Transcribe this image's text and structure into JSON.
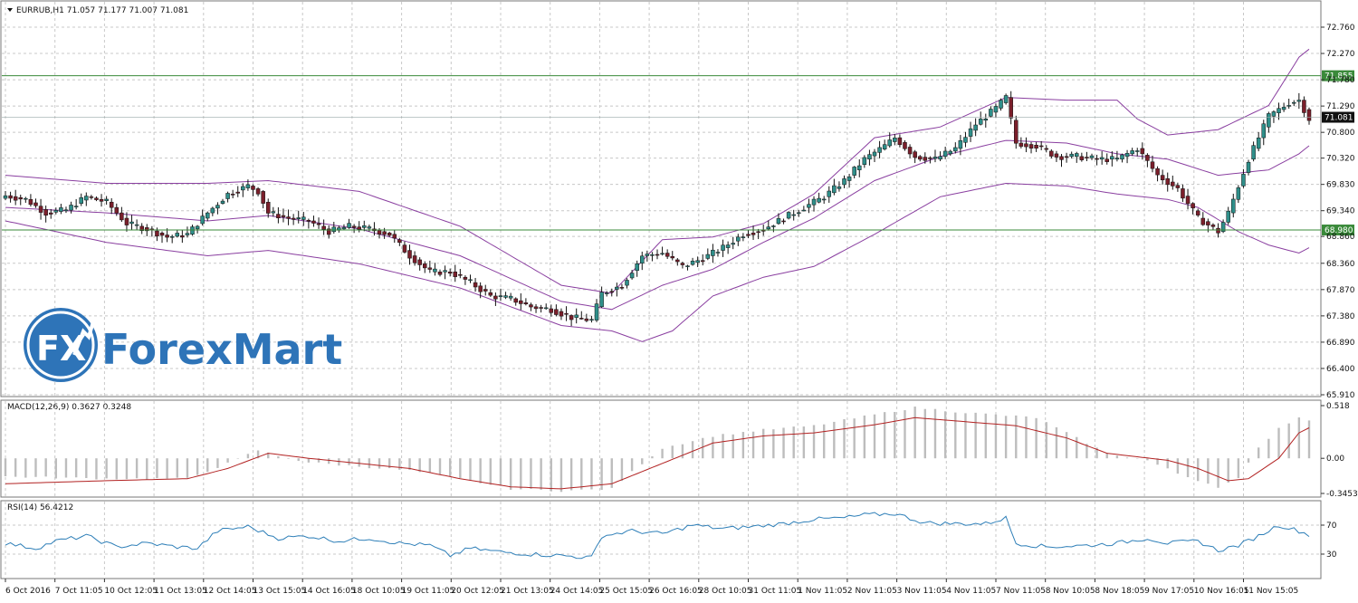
{
  "header": {
    "symbol_line": "EURRUB,H1  71.057 71.177 71.007 71.081"
  },
  "logo": {
    "text": "ForexMart",
    "icon_text": "FX"
  },
  "colors": {
    "bull": "#2f8f8a",
    "bear": "#7a1f2b",
    "band": "#8a3fa0",
    "hline": "#3a8a3a",
    "macd_hist": "#bdbdbd",
    "macd_signal": "#b22222",
    "rsi": "#2e7fb8",
    "grid": "#c8c8c8",
    "logo": "#2e74b8"
  },
  "chart_data": [
    {
      "type": "candlestick",
      "panel": "price",
      "ylim": [
        65.91,
        73.0
      ],
      "y_ticks": [
        "72.760",
        "72.270",
        "71.780",
        "71.290",
        "70.800",
        "70.320",
        "69.830",
        "69.340",
        "68.860",
        "68.360",
        "67.870",
        "67.380",
        "66.890",
        "66.400",
        "65.910"
      ],
      "horizontal_lines": [
        {
          "value": 71.855,
          "label": "71.855"
        },
        {
          "value": 68.98,
          "label": "68.980"
        }
      ],
      "current_price": {
        "value": 71.081,
        "label": "71.081"
      },
      "x_labels": [
        "6 Oct 2016",
        "7 Oct 11:05",
        "10 Oct 12:05",
        "11 Oct 13:05",
        "12 Oct 14:05",
        "13 Oct 15:05",
        "14 Oct 16:05",
        "18 Oct 10:05",
        "19 Oct 11:05",
        "20 Oct 12:05",
        "21 Oct 13:05",
        "24 Oct 14:05",
        "25 Oct 15:05",
        "26 Oct 16:05",
        "28 Oct 10:05",
        "31 Oct 11:05",
        "1 Nov 11:05",
        "2 Nov 11:05",
        "3 Nov 11:05",
        "4 Nov 11:05",
        "7 Nov 11:05",
        "8 Nov 10:05",
        "8 Nov 18:05",
        "9 Nov 17:05",
        "10 Nov 16:05",
        "11 Nov 15:05"
      ],
      "closes_anchor": [
        [
          0,
          69.62
        ],
        [
          4,
          69.55
        ],
        [
          8,
          69.3
        ],
        [
          12,
          69.35
        ],
        [
          16,
          69.6
        ],
        [
          20,
          69.5
        ],
        [
          24,
          69.1
        ],
        [
          28,
          69.0
        ],
        [
          32,
          68.85
        ],
        [
          36,
          68.9
        ],
        [
          40,
          69.3
        ],
        [
          44,
          69.65
        ],
        [
          48,
          69.8
        ],
        [
          50,
          69.7
        ],
        [
          52,
          69.3
        ],
        [
          56,
          69.2
        ],
        [
          60,
          69.15
        ],
        [
          64,
          68.95
        ],
        [
          68,
          69.05
        ],
        [
          72,
          69.0
        ],
        [
          76,
          68.9
        ],
        [
          80,
          68.5
        ],
        [
          84,
          68.2
        ],
        [
          88,
          68.2
        ],
        [
          92,
          68.0
        ],
        [
          96,
          67.75
        ],
        [
          100,
          67.7
        ],
        [
          104,
          67.55
        ],
        [
          108,
          67.5
        ],
        [
          112,
          67.35
        ],
        [
          116,
          67.3
        ],
        [
          118,
          67.8
        ],
        [
          122,
          67.95
        ],
        [
          126,
          68.5
        ],
        [
          130,
          68.55
        ],
        [
          134,
          68.3
        ],
        [
          138,
          68.45
        ],
        [
          142,
          68.65
        ],
        [
          146,
          68.9
        ],
        [
          150,
          69.0
        ],
        [
          154,
          69.2
        ],
        [
          158,
          69.4
        ],
        [
          162,
          69.6
        ],
        [
          166,
          69.9
        ],
        [
          170,
          70.3
        ],
        [
          174,
          70.55
        ],
        [
          176,
          70.7
        ],
        [
          180,
          70.35
        ],
        [
          184,
          70.3
        ],
        [
          188,
          70.5
        ],
        [
          192,
          70.95
        ],
        [
          196,
          71.25
        ],
        [
          198,
          71.45
        ],
        [
          200,
          70.6
        ],
        [
          204,
          70.55
        ],
        [
          208,
          70.35
        ],
        [
          212,
          70.35
        ],
        [
          216,
          70.3
        ],
        [
          220,
          70.3
        ],
        [
          224,
          70.5
        ],
        [
          228,
          70.0
        ],
        [
          232,
          69.75
        ],
        [
          236,
          69.2
        ],
        [
          240,
          68.95
        ],
        [
          242,
          69.3
        ],
        [
          246,
          70.3
        ],
        [
          250,
          71.1
        ],
        [
          254,
          71.35
        ],
        [
          256,
          71.4
        ],
        [
          258,
          71.05
        ]
      ],
      "bollinger_upper_anchor": [
        [
          0,
          70.0
        ],
        [
          20,
          69.85
        ],
        [
          40,
          69.85
        ],
        [
          52,
          69.9
        ],
        [
          70,
          69.7
        ],
        [
          90,
          69.05
        ],
        [
          110,
          67.95
        ],
        [
          120,
          67.8
        ],
        [
          130,
          68.8
        ],
        [
          140,
          68.85
        ],
        [
          150,
          69.1
        ],
        [
          160,
          69.65
        ],
        [
          172,
          70.7
        ],
        [
          185,
          70.9
        ],
        [
          198,
          71.45
        ],
        [
          210,
          71.4
        ],
        [
          220,
          71.4
        ],
        [
          224,
          71.05
        ],
        [
          230,
          70.75
        ],
        [
          240,
          70.85
        ],
        [
          250,
          71.3
        ],
        [
          256,
          72.2
        ],
        [
          258,
          72.35
        ]
      ],
      "bollinger_middle_anchor": [
        [
          0,
          69.4
        ],
        [
          20,
          69.3
        ],
        [
          40,
          69.15
        ],
        [
          52,
          69.25
        ],
        [
          70,
          69.0
        ],
        [
          90,
          68.5
        ],
        [
          110,
          67.65
        ],
        [
          120,
          67.5
        ],
        [
          130,
          67.95
        ],
        [
          140,
          68.25
        ],
        [
          150,
          68.75
        ],
        [
          160,
          69.2
        ],
        [
          172,
          69.9
        ],
        [
          185,
          70.35
        ],
        [
          198,
          70.65
        ],
        [
          210,
          70.6
        ],
        [
          220,
          70.4
        ],
        [
          230,
          70.3
        ],
        [
          240,
          70.0
        ],
        [
          250,
          70.1
        ],
        [
          256,
          70.4
        ],
        [
          258,
          70.55
        ]
      ],
      "bollinger_lower_anchor": [
        [
          0,
          69.15
        ],
        [
          20,
          68.75
        ],
        [
          40,
          68.5
        ],
        [
          52,
          68.6
        ],
        [
          70,
          68.35
        ],
        [
          90,
          67.9
        ],
        [
          110,
          67.2
        ],
        [
          120,
          67.1
        ],
        [
          126,
          66.9
        ],
        [
          132,
          67.1
        ],
        [
          140,
          67.75
        ],
        [
          150,
          68.1
        ],
        [
          160,
          68.3
        ],
        [
          172,
          68.9
        ],
        [
          185,
          69.6
        ],
        [
          198,
          69.85
        ],
        [
          210,
          69.8
        ],
        [
          220,
          69.65
        ],
        [
          230,
          69.55
        ],
        [
          236,
          69.4
        ],
        [
          244,
          68.95
        ],
        [
          250,
          68.7
        ],
        [
          256,
          68.55
        ],
        [
          258,
          68.65
        ]
      ]
    },
    {
      "type": "bar+line",
      "panel": "macd",
      "title": "MACD(12,26,9) 0.3627 0.3248",
      "ylim": [
        -0.3453,
        0.518
      ],
      "y_ticks": [
        "0.518",
        "0.00",
        "-0.3453"
      ],
      "hist_anchor": [
        [
          0,
          -0.18
        ],
        [
          20,
          -0.2
        ],
        [
          36,
          -0.2
        ],
        [
          44,
          -0.05
        ],
        [
          50,
          0.08
        ],
        [
          54,
          0.02
        ],
        [
          60,
          -0.04
        ],
        [
          70,
          -0.08
        ],
        [
          80,
          -0.12
        ],
        [
          90,
          -0.2
        ],
        [
          100,
          -0.3
        ],
        [
          110,
          -0.32
        ],
        [
          120,
          -0.3
        ],
        [
          126,
          -0.05
        ],
        [
          130,
          0.1
        ],
        [
          140,
          0.22
        ],
        [
          150,
          0.28
        ],
        [
          160,
          0.32
        ],
        [
          172,
          0.43
        ],
        [
          180,
          0.5
        ],
        [
          190,
          0.45
        ],
        [
          198,
          0.42
        ],
        [
          204,
          0.4
        ],
        [
          212,
          0.2
        ],
        [
          218,
          0.05
        ],
        [
          226,
          -0.02
        ],
        [
          232,
          -0.15
        ],
        [
          240,
          -0.28
        ],
        [
          244,
          -0.2
        ],
        [
          248,
          0.1
        ],
        [
          252,
          0.3
        ],
        [
          256,
          0.4
        ],
        [
          258,
          0.38
        ]
      ],
      "signal_anchor": [
        [
          0,
          -0.25
        ],
        [
          20,
          -0.22
        ],
        [
          36,
          -0.2
        ],
        [
          44,
          -0.1
        ],
        [
          52,
          0.05
        ],
        [
          60,
          0.0
        ],
        [
          70,
          -0.05
        ],
        [
          80,
          -0.1
        ],
        [
          90,
          -0.2
        ],
        [
          100,
          -0.28
        ],
        [
          110,
          -0.3
        ],
        [
          120,
          -0.25
        ],
        [
          130,
          -0.05
        ],
        [
          140,
          0.15
        ],
        [
          150,
          0.22
        ],
        [
          160,
          0.25
        ],
        [
          172,
          0.33
        ],
        [
          180,
          0.4
        ],
        [
          190,
          0.36
        ],
        [
          200,
          0.32
        ],
        [
          210,
          0.2
        ],
        [
          218,
          0.05
        ],
        [
          230,
          -0.02
        ],
        [
          236,
          -0.1
        ],
        [
          242,
          -0.22
        ],
        [
          246,
          -0.2
        ],
        [
          252,
          0.0
        ],
        [
          256,
          0.25
        ],
        [
          258,
          0.3
        ]
      ]
    },
    {
      "type": "line",
      "panel": "rsi",
      "title": "RSI(14) 56.4212",
      "ylim": [
        0,
        100
      ],
      "y_ticks": [
        "70",
        "30"
      ],
      "rsi_anchor": [
        [
          0,
          45
        ],
        [
          6,
          38
        ],
        [
          10,
          48
        ],
        [
          16,
          55
        ],
        [
          22,
          40
        ],
        [
          28,
          45
        ],
        [
          34,
          40
        ],
        [
          38,
          38
        ],
        [
          42,
          62
        ],
        [
          48,
          68
        ],
        [
          54,
          52
        ],
        [
          60,
          55
        ],
        [
          66,
          48
        ],
        [
          72,
          52
        ],
        [
          78,
          45
        ],
        [
          84,
          42
        ],
        [
          88,
          28
        ],
        [
          92,
          38
        ],
        [
          98,
          33
        ],
        [
          104,
          30
        ],
        [
          110,
          28
        ],
        [
          116,
          25
        ],
        [
          118,
          55
        ],
        [
          124,
          62
        ],
        [
          130,
          58
        ],
        [
          136,
          70
        ],
        [
          142,
          65
        ],
        [
          148,
          68
        ],
        [
          154,
          72
        ],
        [
          160,
          78
        ],
        [
          166,
          80
        ],
        [
          170,
          84
        ],
        [
          176,
          86
        ],
        [
          182,
          73
        ],
        [
          188,
          72
        ],
        [
          194,
          72
        ],
        [
          198,
          80
        ],
        [
          200,
          45
        ],
        [
          206,
          40
        ],
        [
          214,
          42
        ],
        [
          220,
          45
        ],
        [
          226,
          52
        ],
        [
          230,
          45
        ],
        [
          236,
          48
        ],
        [
          240,
          35
        ],
        [
          244,
          42
        ],
        [
          248,
          55
        ],
        [
          252,
          70
        ],
        [
          256,
          62
        ],
        [
          258,
          56.4
        ]
      ]
    }
  ]
}
